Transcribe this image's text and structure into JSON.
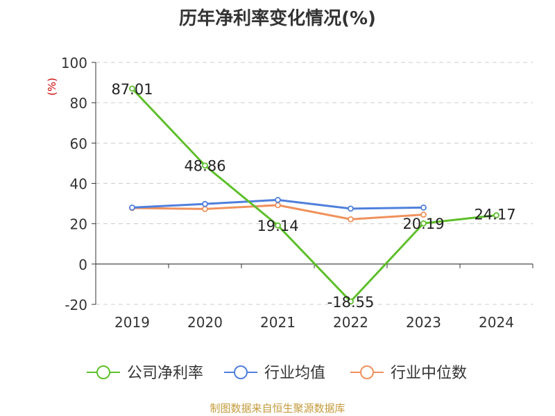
{
  "source_note": "制图数据来自恒生聚源数据库",
  "chart_data": {
    "type": "line",
    "title": "历年净利率变化情况(%)",
    "ylabel": "(%)",
    "categories": [
      "2019",
      "2020",
      "2021",
      "2022",
      "2023",
      "2024"
    ],
    "ylim": [
      -20,
      100
    ],
    "yticks": [
      -20,
      0,
      20,
      40,
      60,
      80,
      100
    ],
    "grid": true,
    "legend_position": "bottom",
    "series": [
      {
        "name": "公司净利率",
        "color": "#5dbf2a",
        "values": [
          87.01,
          48.86,
          19.14,
          -18.55,
          20.19,
          24.17
        ],
        "labels": [
          "87.01",
          "48.86",
          "19.14",
          "-18.55",
          "20.19",
          "24.17"
        ]
      },
      {
        "name": "行业均值",
        "color": "#4f7fdc",
        "values": [
          28.0,
          29.8,
          31.8,
          27.5,
          28.0,
          null
        ]
      },
      {
        "name": "行业中位数",
        "color": "#f0915c",
        "values": [
          27.8,
          27.3,
          29.2,
          22.2,
          24.5,
          null
        ]
      }
    ]
  }
}
